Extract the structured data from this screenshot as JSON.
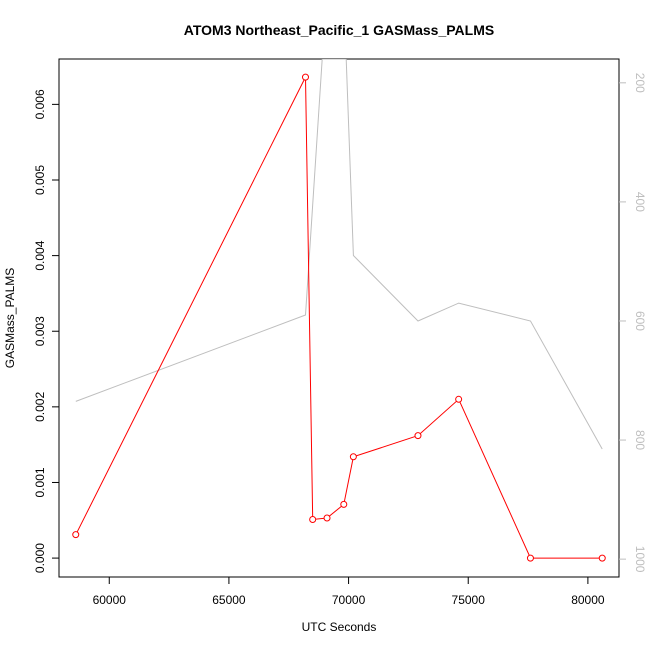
{
  "chart_data": {
    "type": "line",
    "title": "ATOM3 Northeast_Pacific_1 GASMass_PALMS",
    "xlabel": "UTC Seconds",
    "ylabel": "GASMass_PALMS",
    "xlim": [
      57900,
      81300
    ],
    "ylim": [
      -0.00025,
      0.0066
    ],
    "y2lim": [
      1030,
      160
    ],
    "x_ticks": [
      60000,
      65000,
      70000,
      75000,
      80000
    ],
    "x_tick_labels": [
      "60000",
      "65000",
      "70000",
      "75000",
      "80000"
    ],
    "y_ticks": [
      0.0,
      0.001,
      0.002,
      0.003,
      0.004,
      0.005,
      0.006
    ],
    "y_tick_labels": [
      "0.000",
      "0.001",
      "0.002",
      "0.003",
      "0.004",
      "0.005",
      "0.006"
    ],
    "y2_ticks": [
      200,
      400,
      600,
      800,
      1000
    ],
    "y2_tick_labels": [
      "200",
      "400",
      "600",
      "800",
      "1000"
    ],
    "grid": false,
    "series": [
      {
        "axis": "left",
        "color": "#ff0000",
        "markers": "open-circle",
        "x": [
          58600,
          68200,
          68500,
          69100,
          69800,
          70200,
          72900,
          74600,
          77600,
          80600
        ],
        "y": [
          0.00031,
          0.00636,
          0.00051,
          0.00053,
          0.00071,
          0.00134,
          0.00162,
          0.0021,
          0.0,
          0.0
        ]
      },
      {
        "axis": "right",
        "color": "#bebebe",
        "markers": "none",
        "x": [
          58600,
          68200,
          68900,
          69900,
          70200,
          72900,
          74600,
          77600,
          80600
        ],
        "y": [
          735,
          590,
          160,
          160,
          490,
          600,
          570,
          600,
          815
        ]
      }
    ]
  }
}
